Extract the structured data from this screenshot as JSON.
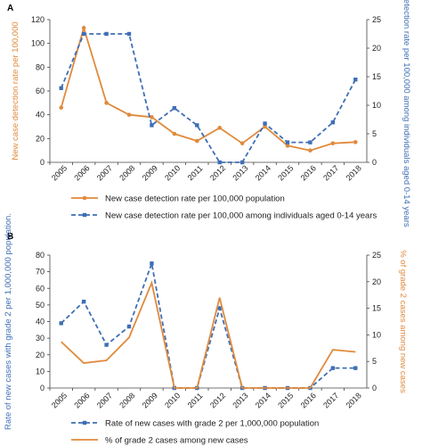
{
  "colors": {
    "orange": "#E08A3C",
    "blue": "#3F6FB5",
    "axis": "#444444"
  },
  "chart_data": [
    {
      "panel": "A",
      "type": "line",
      "categories": [
        "2005",
        "2006",
        "2007",
        "2008",
        "2009",
        "2010",
        "2011",
        "2012",
        "2013",
        "2014",
        "2015",
        "2016",
        "2017",
        "2018"
      ],
      "left_axis": {
        "label": "New case detection rate per 100,000",
        "ylim": [
          0,
          120
        ],
        "ticks": [
          0,
          20,
          40,
          60,
          80,
          100,
          120
        ],
        "color": "#E08A3C"
      },
      "right_axis": {
        "label": "New case detection rate per 100,000 among individuals aged 0-14 years",
        "ylim": [
          0,
          25
        ],
        "ticks": [
          0,
          5,
          10,
          15,
          20,
          25
        ],
        "color": "#3F6FB5"
      },
      "series": [
        {
          "name": "New case detection rate per 100,000 population",
          "axis": "left",
          "style": "solid",
          "marker": "dot",
          "color": "#E08A3C",
          "values": [
            46,
            113,
            50,
            40,
            38,
            24,
            18,
            29,
            16,
            30,
            14,
            10,
            16,
            17
          ]
        },
        {
          "name": "New case detection rate per 100,000 among individuals aged 0-14 years",
          "axis": "right",
          "style": "dashed",
          "marker": "square",
          "color": "#3F6FB5",
          "values": [
            13,
            22.5,
            22.5,
            22.5,
            6.5,
            9.5,
            6.5,
            0,
            0,
            6.8,
            3.5,
            3.5,
            7,
            14.5
          ]
        }
      ],
      "legend_position": "bottom"
    },
    {
      "panel": "B",
      "type": "line",
      "categories": [
        "2005",
        "2006",
        "2007",
        "2008",
        "2009",
        "2010",
        "2011",
        "2012",
        "2013",
        "2014",
        "2015",
        "2016",
        "2017",
        "2018"
      ],
      "left_axis": {
        "label": "Rate of new cases with grade 2 per 1,000,000 population.",
        "ylim": [
          0,
          80
        ],
        "ticks": [
          0,
          10,
          20,
          30,
          40,
          50,
          60,
          70,
          80
        ],
        "color": "#3F6FB5"
      },
      "right_axis": {
        "label": "% of grade 2 cases among new cases",
        "ylim": [
          0,
          25
        ],
        "ticks": [
          0,
          5,
          10,
          15,
          20,
          25
        ],
        "color": "#E08A3C"
      },
      "series": [
        {
          "name": "Rate of new cases with grade 2 per 1,000,000 population",
          "axis": "left",
          "style": "dashed",
          "marker": "square",
          "color": "#3F6FB5",
          "values": [
            39,
            52,
            26,
            37,
            75,
            0,
            0,
            48,
            0,
            0,
            0,
            0,
            12,
            12
          ]
        },
        {
          "name": "% of grade 2 cases among new cases",
          "axis": "right",
          "style": "solid",
          "marker": "none",
          "color": "#E08A3C",
          "values": [
            8.7,
            4.7,
            5.2,
            9.5,
            19.8,
            0,
            0,
            17,
            0,
            0,
            0,
            0,
            7.2,
            6.8
          ]
        }
      ],
      "legend_position": "bottom"
    }
  ]
}
